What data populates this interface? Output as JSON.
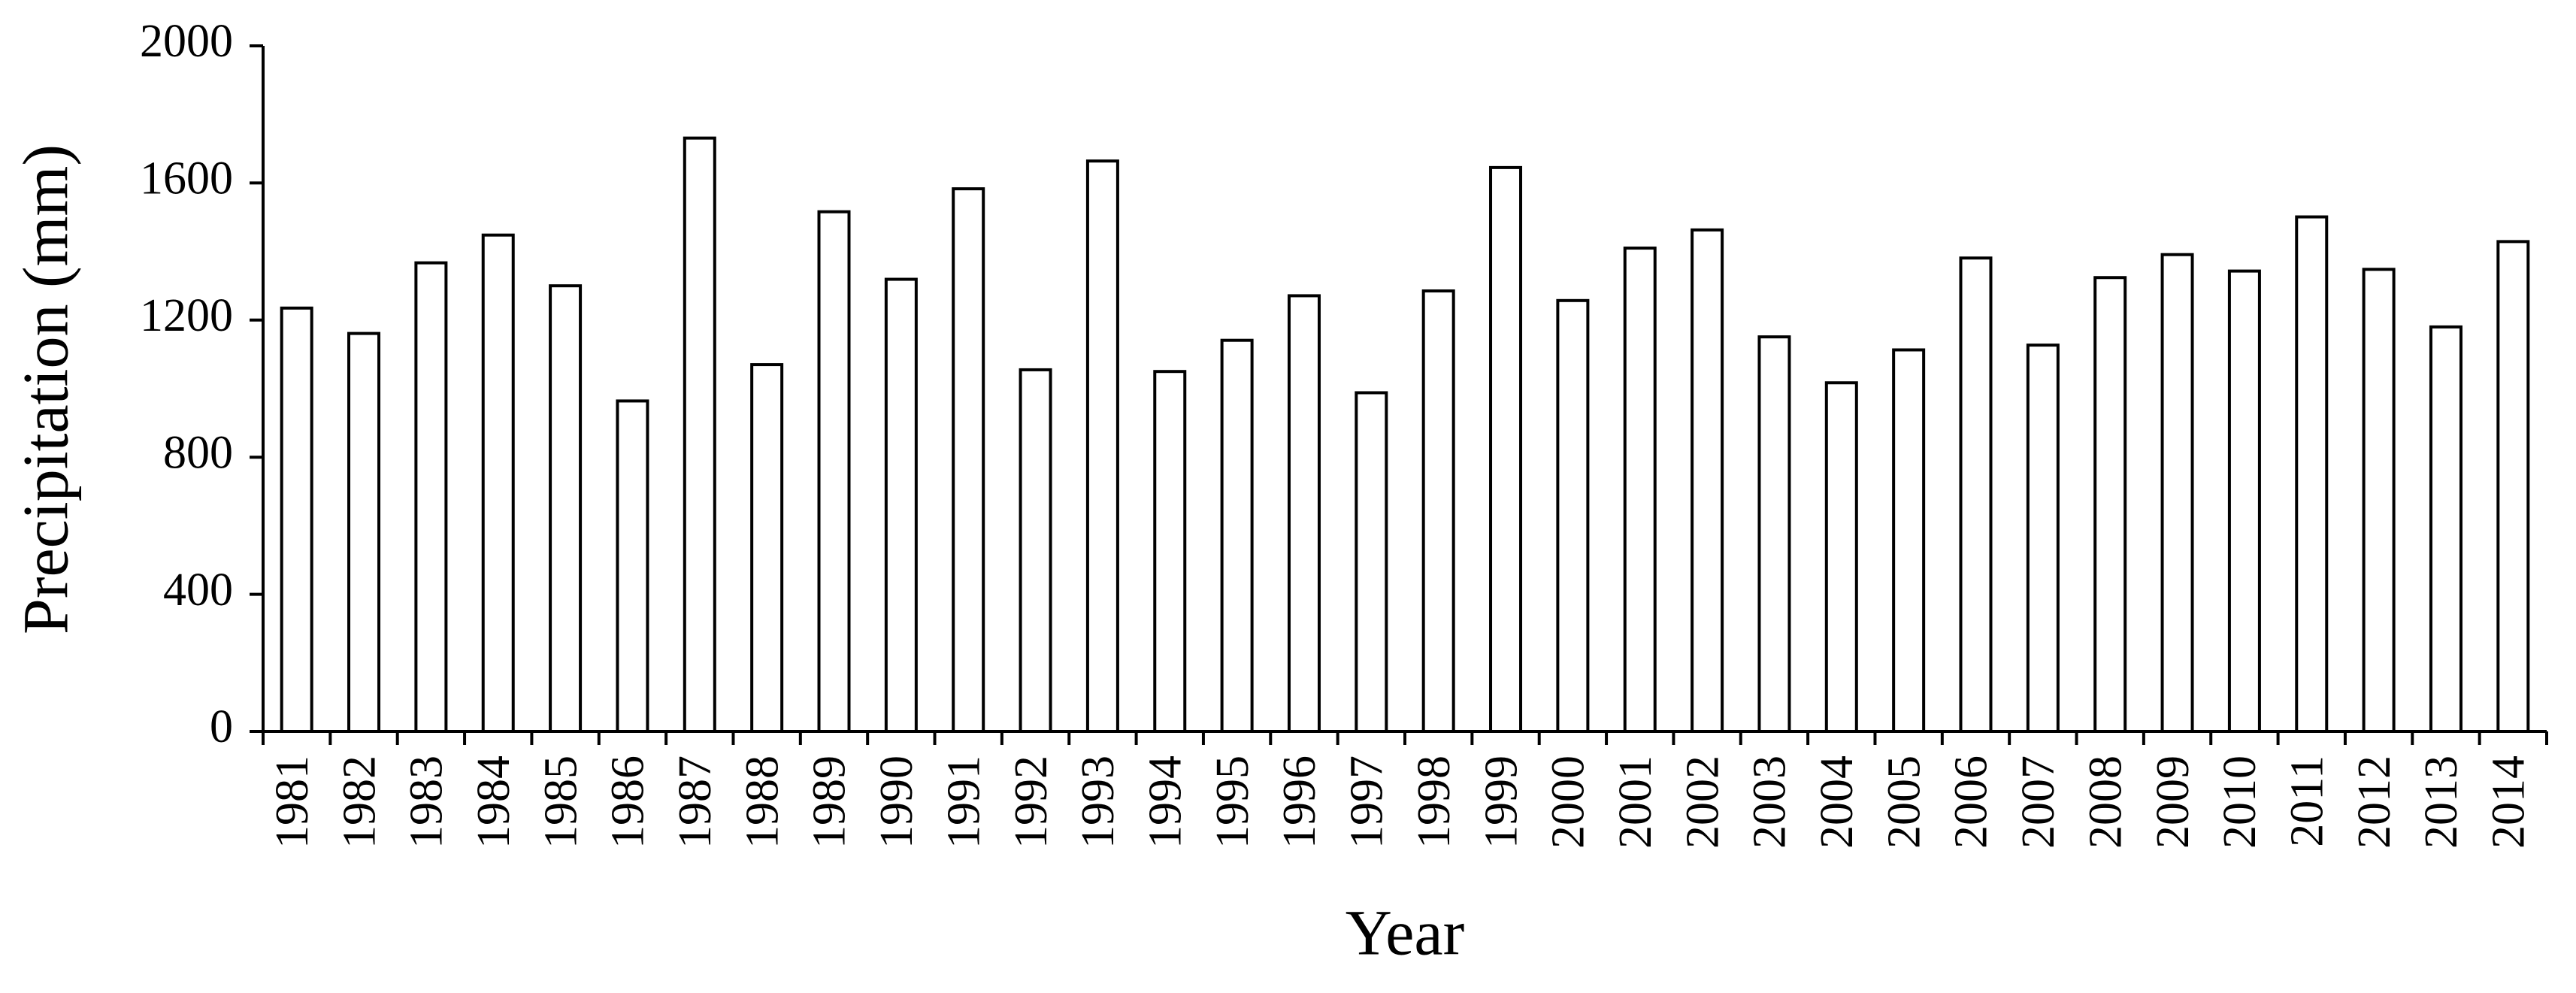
{
  "chart_data": {
    "type": "bar",
    "x_label": "Year",
    "y_label": "Precipitation (mm)",
    "categories": [
      "1981",
      "1982",
      "1983",
      "1984",
      "1985",
      "1986",
      "1987",
      "1988",
      "1989",
      "1990",
      "1991",
      "1992",
      "1993",
      "1994",
      "1995",
      "1996",
      "1997",
      "1998",
      "1999",
      "2000",
      "2001",
      "2002",
      "2003",
      "2004",
      "2005",
      "2006",
      "2007",
      "2008",
      "2009",
      "2010",
      "2011",
      "2012",
      "2013",
      "2014"
    ],
    "values": [
      1235,
      1161,
      1367,
      1448,
      1300,
      964,
      1731,
      1070,
      1516,
      1319,
      1583,
      1055,
      1664,
      1050,
      1141,
      1271,
      988,
      1285,
      1645,
      1257,
      1410,
      1463,
      1151,
      1017,
      1113,
      1381,
      1127,
      1324,
      1391,
      1343,
      1501,
      1348,
      1180,
      1429
    ],
    "color": "#ffffff",
    "ylim": [
      0,
      2000
    ],
    "yticks": [
      0,
      400,
      800,
      1200,
      1600,
      2000
    ],
    "grid": false
  }
}
